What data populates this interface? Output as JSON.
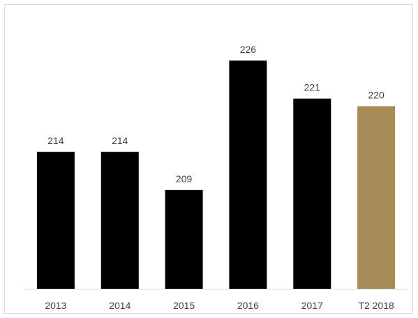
{
  "chart_data": {
    "type": "bar",
    "categories": [
      "2013",
      "2014",
      "2015",
      "2016",
      "2017",
      "T2 2018"
    ],
    "values": [
      214,
      214,
      209,
      226,
      221,
      220
    ],
    "data_labels": [
      "214",
      "214",
      "209",
      "226",
      "221",
      "220"
    ],
    "title": "",
    "xlabel": "",
    "ylabel": "",
    "ylim": [
      196,
      226
    ],
    "grid": false,
    "legend": "none",
    "colors": {
      "default": "#000000",
      "highlight": "#a68c56",
      "axis": "#d9d9d9",
      "text": "#404040"
    },
    "highlight_index": 5
  }
}
